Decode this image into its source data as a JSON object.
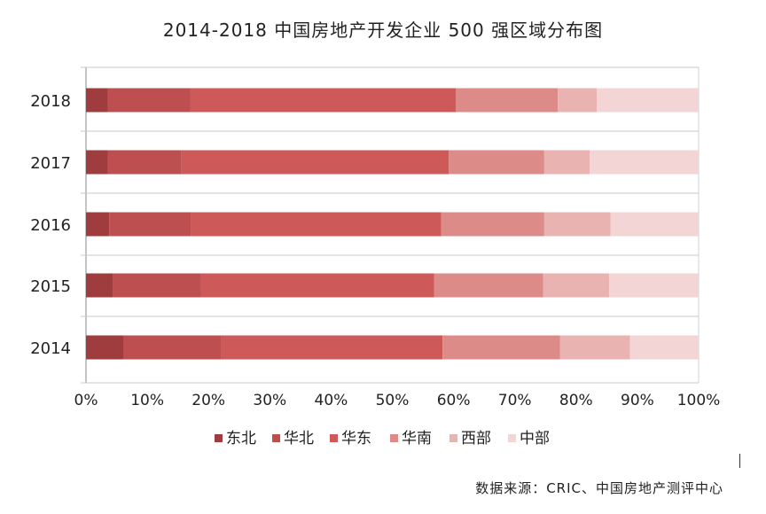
{
  "chart_data": {
    "type": "bar",
    "orientation": "horizontal",
    "stacked": true,
    "title": "2014-2018 中国房地产开发企业 500 强区域分布图",
    "categories": [
      "2018",
      "2017",
      "2016",
      "2015",
      "2014"
    ],
    "x_ticks": [
      "0%",
      "10%",
      "20%",
      "30%",
      "40%",
      "50%",
      "60%",
      "70%",
      "80%",
      "90%",
      "100%"
    ],
    "xlim": [
      0,
      100
    ],
    "grid": true,
    "legend_position": "bottom",
    "series": [
      {
        "name": "东北",
        "color": "#9e3c3e",
        "values": [
          3.6,
          3.6,
          3.8,
          4.4,
          6.2
        ]
      },
      {
        "name": "华北",
        "color": "#bd4f50",
        "values": [
          13.4,
          12.0,
          13.4,
          14.4,
          15.8
        ]
      },
      {
        "name": "华东",
        "color": "#cd5a59",
        "values": [
          43.4,
          43.6,
          40.8,
          38.0,
          36.2
        ]
      },
      {
        "name": "华南",
        "color": "#dc8b89",
        "values": [
          16.6,
          15.6,
          16.8,
          17.8,
          19.2
        ]
      },
      {
        "name": "西部",
        "color": "#e8b3b1",
        "values": [
          6.4,
          7.4,
          10.8,
          10.8,
          11.4
        ]
      },
      {
        "name": "中部",
        "color": "#f2d5d4",
        "values": [
          16.6,
          17.8,
          14.4,
          14.6,
          11.2
        ]
      }
    ]
  },
  "source_note": "数据来源：CRIC、中国房地产测评中心"
}
